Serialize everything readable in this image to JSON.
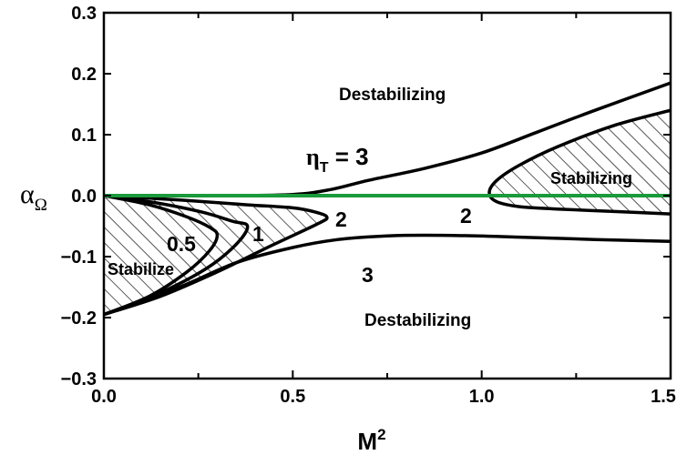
{
  "chart_data": {
    "type": "line",
    "title": "",
    "xlabel": "M",
    "xlabel_sup": "2",
    "ylabel": "α",
    "ylabel_sub": "Ω",
    "xlim": [
      0.0,
      1.5
    ],
    "ylim": [
      -0.3,
      0.3
    ],
    "x_ticks": [
      "0.0",
      "0.5",
      "1.0",
      "1.5"
    ],
    "y_ticks": [
      "0.3",
      "0.2",
      "0.1",
      "0.0",
      "−0.1",
      "−0.2",
      "−0.3"
    ],
    "grid": false,
    "legend": "none",
    "reference_line": {
      "y": 0.0,
      "color": "#1a9a3a"
    },
    "curve_color": "#000000",
    "curves": [
      {
        "label": "0.5",
        "x": [
          0.0,
          0.12,
          0.22,
          0.28,
          0.3,
          0.28,
          0.22,
          0.12,
          0.0
        ],
        "y": [
          0.0,
          -0.015,
          -0.035,
          -0.052,
          -0.065,
          -0.09,
          -0.125,
          -0.165,
          -0.195
        ]
      },
      {
        "label": "1",
        "x": [
          0.0,
          0.14,
          0.26,
          0.34,
          0.38,
          0.35,
          0.27,
          0.14,
          0.0
        ],
        "y": [
          0.0,
          -0.012,
          -0.027,
          -0.042,
          -0.05,
          -0.08,
          -0.12,
          -0.162,
          -0.195
        ]
      },
      {
        "label": "2",
        "x": [
          0.0,
          0.2,
          0.38,
          0.5,
          0.56,
          0.59,
          0.57,
          0.45,
          0.3,
          0.15,
          0.0
        ],
        "y": [
          0.0,
          -0.007,
          -0.015,
          -0.02,
          -0.027,
          -0.035,
          -0.045,
          -0.08,
          -0.125,
          -0.165,
          -0.195
        ]
      },
      {
        "label": "3",
        "x": [
          0.0,
          0.2,
          0.35,
          0.5,
          0.62,
          0.75,
          0.9,
          1.1,
          1.3,
          1.5
        ],
        "y": [
          -0.195,
          -0.15,
          -0.11,
          -0.085,
          -0.072,
          -0.066,
          -0.065,
          -0.068,
          -0.072,
          -0.075
        ]
      },
      {
        "label": "3 (upper)",
        "x": [
          0.0,
          0.3,
          0.5,
          0.6,
          0.7,
          0.85,
          1.0,
          1.15,
          1.3,
          1.5
        ],
        "y": [
          0.0,
          0.0,
          0.002,
          0.01,
          0.025,
          0.045,
          0.07,
          0.105,
          0.14,
          0.185
        ]
      },
      {
        "label": "2 (right)",
        "x": [
          1.5,
          1.35,
          1.2,
          1.1,
          1.04,
          1.02,
          1.04,
          1.1,
          1.2,
          1.35,
          1.5
        ],
        "y": [
          0.14,
          0.115,
          0.08,
          0.05,
          0.025,
          0.005,
          -0.01,
          -0.018,
          -0.022,
          -0.026,
          -0.03
        ]
      }
    ]
  },
  "annotations": {
    "eta": {
      "symbol": "η",
      "sub": "T",
      "text": " = 3"
    },
    "destab_top": "Destabilizing",
    "destab_bottom": "Destabilizing",
    "stabilize_left": "Stabilize",
    "stabilizing_right": "Stabilizing",
    "curve_labels": {
      "c05": "0.5",
      "c1": "1",
      "c2_left": "2",
      "c2_right": "2",
      "c3": "3"
    }
  }
}
